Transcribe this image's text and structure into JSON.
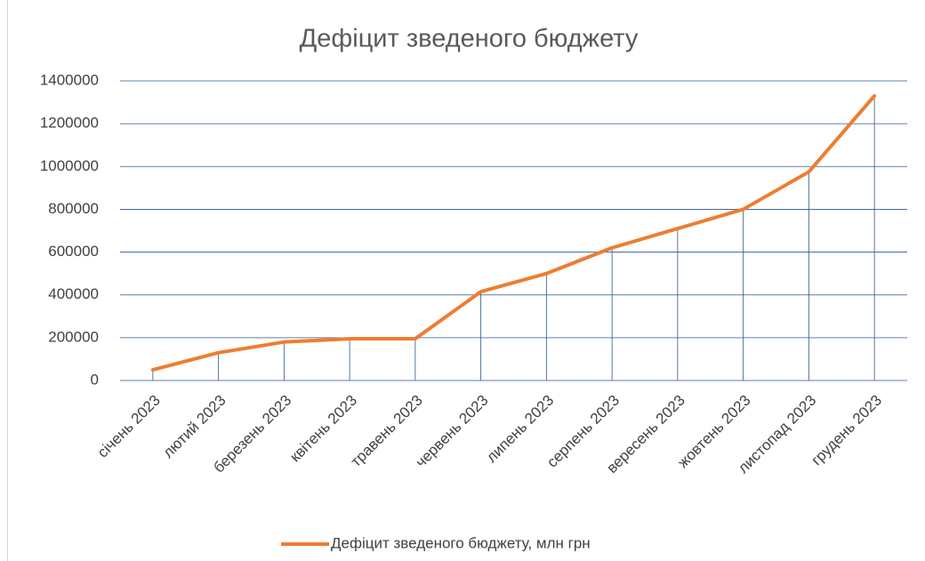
{
  "chart_data": {
    "type": "line",
    "title": "Дефіцит зведеного бюджету",
    "categories": [
      "січень 2023",
      "лютий 2023",
      "березень 2023",
      "квітень 2023",
      "травень 2023",
      "червень 2023",
      "липень 2023",
      "серпень 2023",
      "вересень 2023",
      "жовтень 2023",
      "листопад 2023",
      "грудень 2023"
    ],
    "series": [
      {
        "name": "Дефіцит зведеного бюджету, млн грн",
        "color": "#ed7d31",
        "values": [
          50000,
          130000,
          180000,
          195000,
          195000,
          415000,
          500000,
          620000,
          710000,
          800000,
          975000,
          1330000
        ]
      }
    ],
    "ylim": [
      0,
      1400000
    ],
    "yticks": [
      0,
      200000,
      400000,
      600000,
      800000,
      1000000,
      1200000,
      1400000
    ],
    "grid": true,
    "drop_lines": true,
    "legend": "bottom"
  }
}
